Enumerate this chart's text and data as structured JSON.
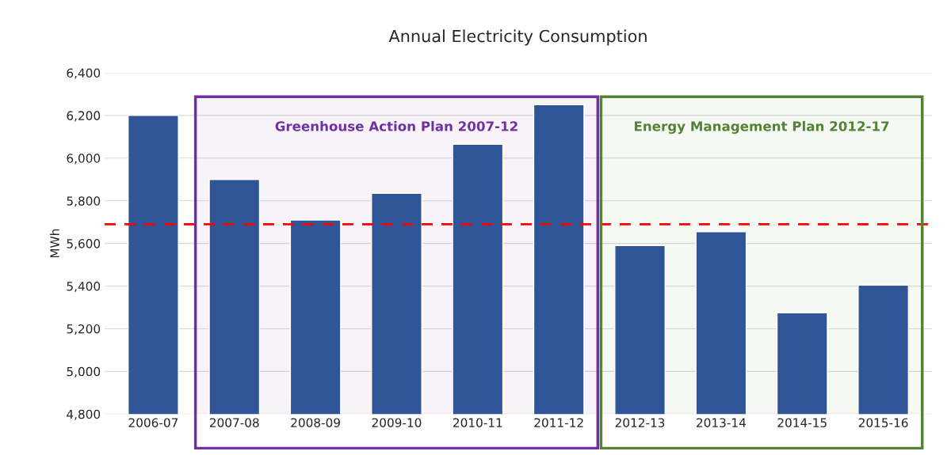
{
  "chart_data": {
    "type": "bar",
    "title": "Annual Electricity Consumption",
    "ylabel": "MWh",
    "categories": [
      "2006-07",
      "2007-08",
      "2008-09",
      "2009-10",
      "2010-11",
      "2011-12",
      "2012-13",
      "2013-14",
      "2014-15",
      "2015-16"
    ],
    "values": [
      6200,
      5900,
      5710,
      5835,
      6065,
      6250,
      5590,
      5655,
      5275,
      5405
    ],
    "color": "#2f5597",
    "ylim": [
      4800,
      6400
    ],
    "yticks": [
      {
        "value": 4800,
        "label": "4,800"
      },
      {
        "value": 5000,
        "label": "5,000"
      },
      {
        "value": 5200,
        "label": "5,200"
      },
      {
        "value": 5400,
        "label": "5,400"
      },
      {
        "value": 5600,
        "label": "5,600"
      },
      {
        "value": 5800,
        "label": "5,800"
      },
      {
        "value": 6000,
        "label": "6,000"
      },
      {
        "value": 6200,
        "label": "6,200"
      },
      {
        "value": 6400,
        "label": "6,400"
      }
    ],
    "grid": "y",
    "ref_lines": [
      {
        "axis": "y",
        "value": 5690,
        "color": "#ff0000",
        "line_style": "dashed"
      }
    ],
    "bands": [
      {
        "axis": "x",
        "from": "2007-08",
        "to": "2011-12",
        "label": "Greenhouse Action Plan 2007-12",
        "color": "#7030a0"
      },
      {
        "axis": "x",
        "from": "2012-13",
        "to": "2015-16",
        "label": "Energy Management Plan 2012-17",
        "color": "#548235"
      }
    ]
  }
}
